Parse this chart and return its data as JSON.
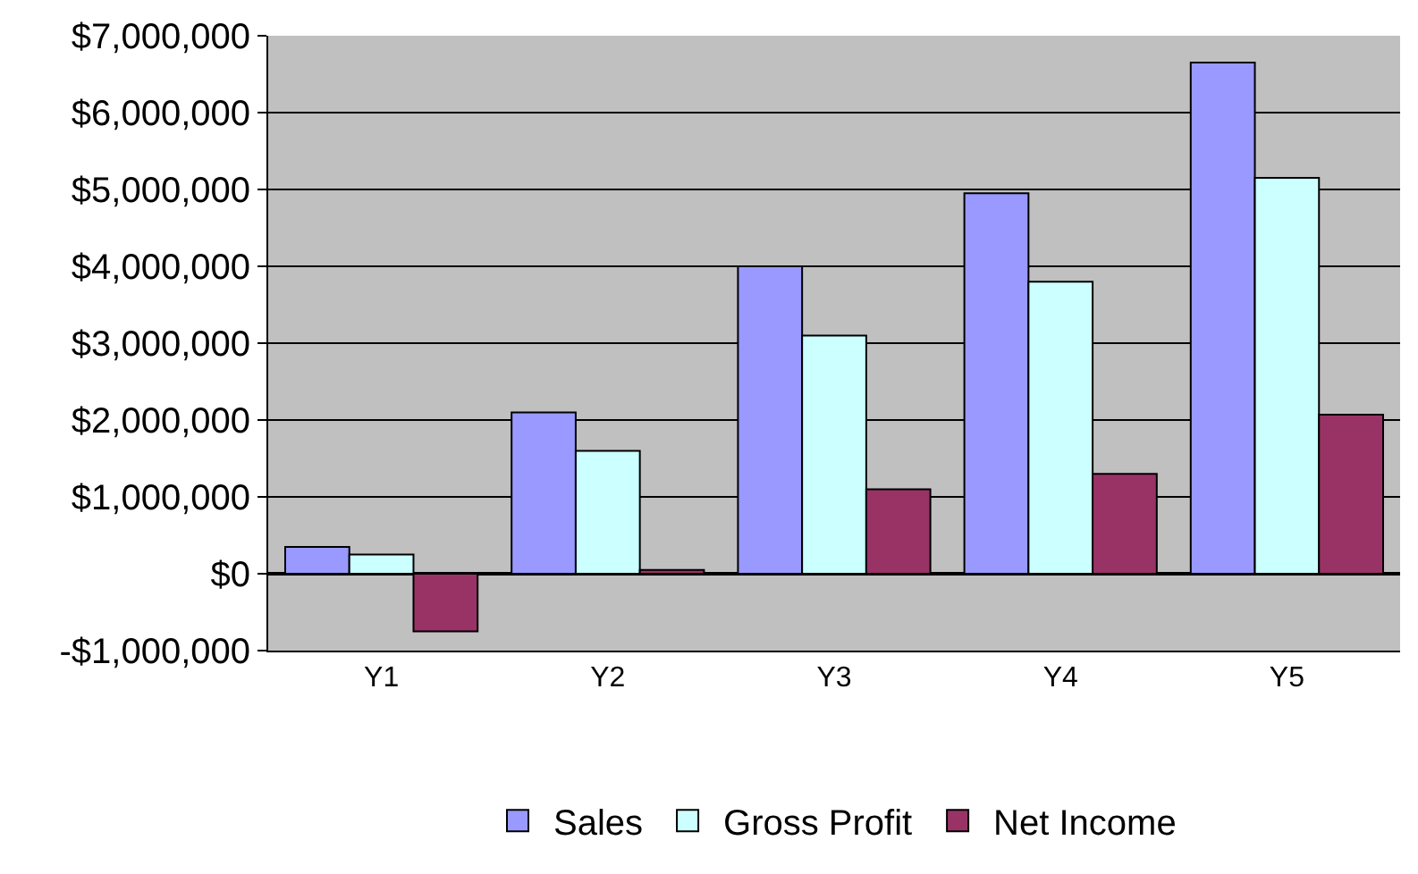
{
  "chart_data": {
    "type": "bar",
    "categories": [
      "Y1",
      "Y2",
      "Y3",
      "Y4",
      "Y5"
    ],
    "series": [
      {
        "name": "Sales",
        "color": "#9999ff",
        "values": [
          350000,
          2100000,
          4000000,
          4950000,
          6650000
        ]
      },
      {
        "name": "Gross Profit",
        "color": "#ccffff",
        "values": [
          250000,
          1600000,
          3100000,
          3800000,
          5150000
        ]
      },
      {
        "name": "Net Income",
        "color": "#993366",
        "values": [
          -750000,
          50000,
          1100000,
          1300000,
          2070000
        ]
      }
    ],
    "ylim": [
      -1000000,
      7000000
    ],
    "yticks": [
      {
        "value": -1000000,
        "label": "-$1,000,000"
      },
      {
        "value": 0,
        "label": "$0"
      },
      {
        "value": 1000000,
        "label": "$1,000,000"
      },
      {
        "value": 2000000,
        "label": "$2,000,000"
      },
      {
        "value": 3000000,
        "label": "$3,000,000"
      },
      {
        "value": 4000000,
        "label": "$4,000,000"
      },
      {
        "value": 5000000,
        "label": "$5,000,000"
      },
      {
        "value": 6000000,
        "label": "$6,000,000"
      },
      {
        "value": 7000000,
        "label": "$7,000,000"
      }
    ],
    "grid": "y",
    "legend": "bottom"
  }
}
